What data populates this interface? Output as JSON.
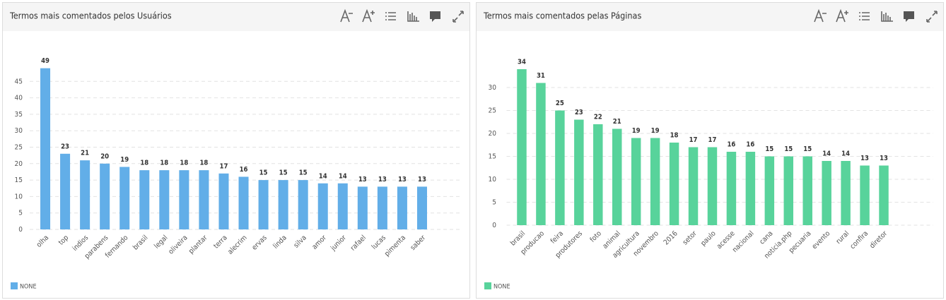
{
  "chart_data": [
    {
      "type": "bar",
      "title": "Termos mais comentados pelos Usuários",
      "categories": [
        "olha",
        "top",
        "indios",
        "parabens",
        "fernando",
        "brasil",
        "legal",
        "oliveira",
        "plantar",
        "terra",
        "alecrim",
        "ervas",
        "linda",
        "silva",
        "amor",
        "junior",
        "rafael",
        "lucas",
        "pimenta",
        "saber"
      ],
      "series": [
        {
          "name": "NONE",
          "color": "#62aee8",
          "values": [
            49,
            23,
            21,
            20,
            19,
            18,
            18,
            18,
            18,
            17,
            16,
            15,
            15,
            15,
            14,
            14,
            13,
            13,
            13,
            13
          ]
        }
      ],
      "ylim": [
        0,
        50
      ],
      "yticks": [
        0,
        5,
        10,
        15,
        20,
        25,
        30,
        35,
        40,
        45
      ],
      "grid": true
    },
    {
      "type": "bar",
      "title": "Termos mais comentados pelas Páginas",
      "categories": [
        "brasil",
        "producao",
        "feira",
        "produtores",
        "foto",
        "animal",
        "agricultura",
        "novembro",
        "2016",
        "setor",
        "paulo",
        "acesse",
        "nacional",
        "cana",
        "noticia.php",
        "pecuaria",
        "evento",
        "rural",
        "confira",
        "diretor"
      ],
      "series": [
        {
          "name": "NONE",
          "color": "#58d39b",
          "values": [
            34,
            31,
            25,
            23,
            22,
            21,
            19,
            19,
            18,
            17,
            17,
            16,
            16,
            15,
            15,
            15,
            14,
            14,
            13,
            13
          ]
        }
      ],
      "ylim": [
        0,
        35
      ],
      "yticks": [
        0,
        5,
        10,
        15,
        20,
        25,
        30
      ],
      "grid": true
    }
  ]
}
